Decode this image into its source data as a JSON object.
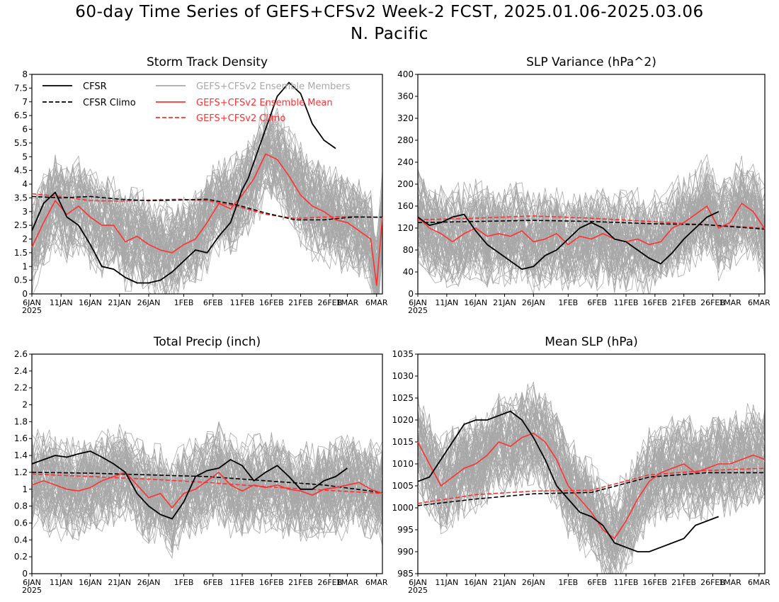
{
  "page": {
    "title_line1": "60-day Time Series of GEFS+CFSv2 Week-2 FCST, 2025.01.06-2025.03.06",
    "title_line2": "N. Pacific"
  },
  "colors": {
    "obs": "#000000",
    "members": "#a8a8a8",
    "ens_mean": "#ff3030",
    "climo_ens": "#ff3030"
  },
  "chart_data": [
    {
      "type": "line",
      "title": "Storm Track Density",
      "x_tick_labels": [
        "6JAN",
        "11JAN",
        "16JAN",
        "21JAN",
        "26JAN",
        "1FEB",
        "6FEB",
        "11FEB",
        "16FEB",
        "21FEB",
        "26FEB",
        "1MAR",
        "6MAR"
      ],
      "x_year_label": "2025",
      "ylim": [
        0,
        8
      ],
      "y_ticks": [
        "0",
        "0.5",
        "1",
        "1.5",
        "2",
        "2.5",
        "3",
        "3.5",
        "4",
        "4.5",
        "5",
        "5.5",
        "6",
        "6.5",
        "7",
        "7.5",
        "8"
      ],
      "legend": [
        {
          "label": "CFSR",
          "style": "solid",
          "color": "#000000"
        },
        {
          "label": "CFSR Climo",
          "style": "dashed",
          "color": "#000000"
        },
        {
          "label": "GEFS+CFSv2 Ensemble Members",
          "style": "solid",
          "color": "#a8a8a8"
        },
        {
          "label": "GEFS+CFSv2 Ensemble Mean",
          "style": "solid",
          "color": "#ff3030"
        },
        {
          "label": "GEFS+CFSv2 Climo",
          "style": "dashed",
          "color": "#ff3030"
        }
      ],
      "series": [
        {
          "name": "CFSR",
          "x": [
            0,
            2,
            4,
            6,
            8,
            10,
            12,
            14,
            16,
            18,
            20,
            22,
            24,
            26,
            28,
            30,
            32,
            34,
            36,
            37,
            38,
            40,
            42,
            44,
            46,
            48,
            50,
            52,
            54,
            56,
            58
          ],
          "y": [
            2.3,
            3.3,
            3.7,
            2.8,
            2.5,
            1.8,
            1.0,
            0.9,
            0.6,
            0.4,
            0.4,
            0.5,
            0.8,
            1.2,
            1.6,
            1.5,
            2.1,
            2.6,
            3.8,
            4.2,
            4.8,
            6.0,
            7.2,
            7.7,
            7.3,
            6.2,
            5.6,
            5.3,
            null,
            null,
            null
          ]
        },
        {
          "name": "CFSR Climo",
          "x": [
            0,
            5,
            10,
            15,
            20,
            25,
            30,
            35,
            40,
            45,
            50,
            55,
            60
          ],
          "y": [
            3.55,
            3.5,
            3.55,
            3.45,
            3.4,
            3.42,
            3.45,
            3.25,
            2.95,
            2.7,
            2.7,
            2.8,
            2.8
          ]
        },
        {
          "name": "GEFS+CFSv2 Ensemble Mean",
          "x": [
            0,
            2,
            4,
            6,
            8,
            10,
            12,
            14,
            16,
            18,
            20,
            22,
            24,
            26,
            28,
            30,
            32,
            34,
            36,
            38,
            40,
            42,
            44,
            46,
            48,
            50,
            52,
            54,
            56,
            58,
            59,
            60
          ],
          "y": [
            1.7,
            2.6,
            3.4,
            2.9,
            3.2,
            2.8,
            2.5,
            2.5,
            1.9,
            2.1,
            1.8,
            1.6,
            1.5,
            1.8,
            2.0,
            2.6,
            3.3,
            3.1,
            3.6,
            4.2,
            5.1,
            4.9,
            4.3,
            3.6,
            3.2,
            3.0,
            2.7,
            2.6,
            2.3,
            2.0,
            0.3,
            2.8
          ]
        },
        {
          "name": "GEFS+CFSv2 Climo",
          "x": [
            0,
            5,
            10,
            15,
            20,
            25,
            30,
            35,
            40,
            45,
            50,
            55,
            60
          ],
          "y": [
            3.65,
            3.55,
            3.4,
            3.38,
            3.42,
            3.45,
            3.4,
            3.2,
            2.9,
            2.75,
            2.8,
            2.82,
            2.78
          ]
        }
      ]
    },
    {
      "type": "line",
      "title": "SLP Variance (hPa^2)",
      "x_tick_labels": [
        "6JAN",
        "11JAN",
        "16JAN",
        "21JAN",
        "26JAN",
        "1FEB",
        "6FEB",
        "11FEB",
        "16FEB",
        "21FEB",
        "26FEB",
        "1MAR",
        "6MAR"
      ],
      "x_year_label": "2025",
      "ylim": [
        0,
        400
      ],
      "y_ticks": [
        "0",
        "40",
        "80",
        "120",
        "160",
        "200",
        "240",
        "280",
        "320",
        "360",
        "400"
      ],
      "series": [
        {
          "name": "CFSR",
          "x": [
            0,
            2,
            4,
            6,
            8,
            10,
            12,
            14,
            16,
            18,
            20,
            22,
            24,
            26,
            28,
            30,
            32,
            34,
            36,
            38,
            40,
            42,
            44,
            46,
            48,
            50,
            52
          ],
          "y": [
            140,
            125,
            130,
            140,
            145,
            115,
            90,
            75,
            60,
            45,
            50,
            70,
            80,
            100,
            120,
            130,
            120,
            100,
            95,
            80,
            65,
            55,
            75,
            100,
            120,
            140,
            150
          ]
        },
        {
          "name": "CFSR Climo",
          "x": [
            0,
            10,
            20,
            30,
            40,
            50,
            60
          ],
          "y": [
            130,
            132,
            134,
            132,
            128,
            126,
            118
          ]
        },
        {
          "name": "GEFS+CFSv2 Ensemble Mean",
          "x": [
            0,
            2,
            4,
            6,
            8,
            10,
            12,
            14,
            16,
            18,
            20,
            22,
            24,
            26,
            28,
            30,
            32,
            34,
            36,
            38,
            40,
            42,
            44,
            46,
            48,
            50,
            52,
            54,
            56,
            58,
            60
          ],
          "y": [
            140,
            120,
            110,
            95,
            110,
            120,
            105,
            110,
            105,
            115,
            95,
            100,
            110,
            90,
            105,
            100,
            110,
            100,
            95,
            100,
            90,
            95,
            120,
            130,
            145,
            160,
            120,
            130,
            165,
            150,
            118
          ]
        },
        {
          "name": "GEFS+CFSv2 Climo",
          "x": [
            0,
            10,
            20,
            30,
            40,
            50,
            60
          ],
          "y": [
            135,
            138,
            142,
            138,
            132,
            126,
            120
          ]
        }
      ]
    },
    {
      "type": "line",
      "title": "Total Precip (inch)",
      "x_tick_labels": [
        "6JAN",
        "11JAN",
        "16JAN",
        "21JAN",
        "26JAN",
        "1FEB",
        "6FEB",
        "11FEB",
        "16FEB",
        "21FEB",
        "26FEB",
        "1MAR",
        "6MAR"
      ],
      "x_year_label": "2025",
      "ylim": [
        0,
        2.6
      ],
      "y_ticks": [
        "0",
        "0.2",
        "0.4",
        "0.6",
        "0.8",
        "1",
        "1.2",
        "1.4",
        "1.6",
        "1.8",
        "2",
        "2.2",
        "2.4",
        "2.6"
      ],
      "series": [
        {
          "name": "CFSR",
          "x": [
            0,
            2,
            4,
            6,
            8,
            10,
            12,
            14,
            16,
            18,
            20,
            22,
            24,
            26,
            28,
            30,
            32,
            34,
            36,
            38,
            40,
            42,
            44,
            46,
            48,
            50,
            52,
            54
          ],
          "y": [
            1.3,
            1.35,
            1.4,
            1.38,
            1.42,
            1.45,
            1.38,
            1.3,
            1.2,
            0.95,
            0.8,
            0.7,
            0.65,
            0.85,
            1.15,
            1.22,
            1.25,
            1.35,
            1.28,
            1.1,
            1.2,
            1.28,
            1.15,
            1.0,
            1.0,
            1.1,
            1.15,
            1.25
          ]
        },
        {
          "name": "CFSR Climo",
          "x": [
            0,
            10,
            20,
            30,
            40,
            50,
            60
          ],
          "y": [
            1.2,
            1.19,
            1.17,
            1.15,
            1.1,
            1.05,
            0.96
          ]
        },
        {
          "name": "GEFS+CFSv2 Ensemble Mean",
          "x": [
            0,
            2,
            4,
            6,
            8,
            10,
            12,
            14,
            16,
            18,
            20,
            22,
            24,
            26,
            28,
            30,
            32,
            34,
            36,
            38,
            40,
            42,
            44,
            46,
            48,
            50,
            52,
            54,
            56,
            58,
            60
          ],
          "y": [
            1.05,
            1.1,
            1.05,
            1.0,
            0.98,
            1.02,
            1.1,
            1.15,
            1.2,
            1.05,
            0.9,
            0.95,
            0.78,
            0.95,
            1.0,
            1.1,
            1.2,
            1.05,
            0.98,
            1.05,
            1.02,
            1.05,
            1.0,
            0.98,
            0.93,
            1.0,
            1.02,
            1.05,
            1.08,
            1.0,
            0.95
          ]
        },
        {
          "name": "GEFS+CFSv2 Climo",
          "x": [
            0,
            10,
            20,
            30,
            40,
            50,
            60
          ],
          "y": [
            1.18,
            1.15,
            1.12,
            1.08,
            1.03,
            0.99,
            0.95
          ]
        }
      ]
    },
    {
      "type": "line",
      "title": "Mean SLP (hPa)",
      "x_tick_labels": [
        "6JAN",
        "11JAN",
        "16JAN",
        "21JAN",
        "26JAN",
        "1FEB",
        "6FEB",
        "11FEB",
        "16FEB",
        "21FEB",
        "26FEB",
        "1MAR",
        "6MAR"
      ],
      "x_year_label": "2025",
      "ylim": [
        985,
        1035
      ],
      "y_ticks": [
        "985",
        "990",
        "995",
        "1000",
        "1005",
        "1010",
        "1015",
        "1020",
        "1025",
        "1030",
        "1035"
      ],
      "series": [
        {
          "name": "CFSR",
          "x": [
            0,
            2,
            4,
            6,
            8,
            10,
            12,
            14,
            16,
            18,
            20,
            22,
            24,
            26,
            28,
            30,
            32,
            34,
            36,
            38,
            40,
            42,
            44,
            46,
            48,
            50,
            52
          ],
          "y": [
            1006,
            1007,
            1011,
            1015,
            1019,
            1020,
            1020,
            1021,
            1022,
            1020,
            1016,
            1011,
            1005,
            1002,
            999,
            998,
            996,
            992,
            991,
            990,
            990,
            991,
            992,
            993,
            996,
            997,
            998
          ]
        },
        {
          "name": "CFSR Climo",
          "x": [
            0,
            10,
            20,
            30,
            40,
            50,
            60
          ],
          "y": [
            1000.5,
            1002,
            1003.2,
            1003.5,
            1007,
            1008,
            1008
          ]
        },
        {
          "name": "GEFS+CFSv2 Ensemble Mean",
          "x": [
            0,
            2,
            4,
            6,
            8,
            10,
            12,
            14,
            16,
            18,
            20,
            22,
            24,
            26,
            28,
            30,
            32,
            34,
            36,
            38,
            40,
            42,
            44,
            46,
            48,
            50,
            52,
            54,
            56,
            58,
            60
          ],
          "y": [
            1015,
            1010,
            1005,
            1007,
            1009,
            1010,
            1012,
            1015,
            1014,
            1016,
            1017,
            1015,
            1011,
            1005,
            1002,
            999,
            995,
            993,
            997,
            1002,
            1006,
            1008,
            1009,
            1010,
            1008,
            1009,
            1010,
            1010,
            1011,
            1012,
            1011
          ]
        },
        {
          "name": "GEFS+CFSv2 Climo",
          "x": [
            0,
            10,
            20,
            30,
            40,
            50,
            60
          ],
          "y": [
            1001,
            1003,
            1003.8,
            1004,
            1007.5,
            1008.5,
            1009
          ]
        }
      ]
    }
  ]
}
